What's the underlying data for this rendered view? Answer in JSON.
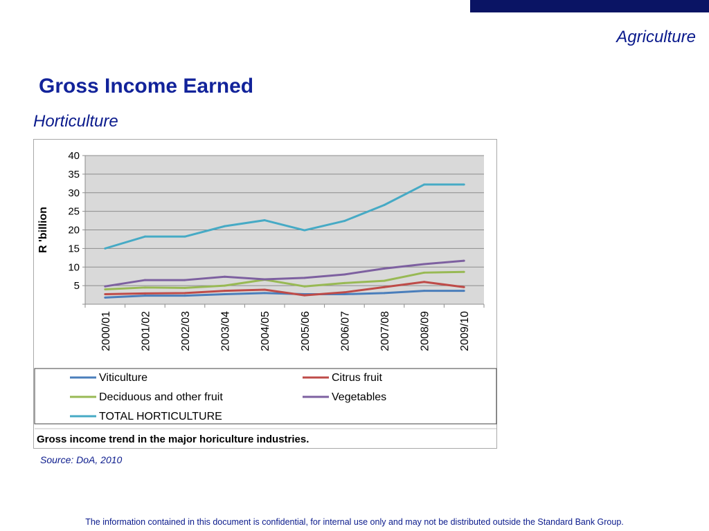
{
  "header": {
    "section_label": "Agriculture",
    "title": "Gross Income Earned",
    "subtitle": "Horticulture"
  },
  "source": "Source: DoA, 2010",
  "footer": "The information contained in this document is confidential, for internal use only and may not be distributed outside the Standard Bank Group.",
  "colors": {
    "brand_bar": "#0a1464",
    "heading": "#12239a",
    "plot_bg": "#d9d9d9"
  },
  "chart_data": {
    "type": "line",
    "title": "",
    "ylabel": "R 'billion",
    "xlabel": "",
    "ylim": [
      0,
      40
    ],
    "yticks": [
      5,
      10,
      15,
      20,
      25,
      30,
      35,
      40
    ],
    "grid": true,
    "legend_position": "bottom",
    "caption": "Gross income trend in the major horiculture industries.",
    "categories": [
      "2000/01",
      "2001/02",
      "2002/03",
      "2003/04",
      "2004/05",
      "2005/06",
      "2006/07",
      "2007/08",
      "2008/09",
      "2009/10"
    ],
    "series": [
      {
        "name": "Viticulture",
        "color": "#4a7ebb",
        "values": [
          1.8,
          2.3,
          2.3,
          2.7,
          3.0,
          2.7,
          2.7,
          3.0,
          3.6,
          3.6
        ]
      },
      {
        "name": "Citrus fruit",
        "color": "#be4b48",
        "values": [
          2.7,
          2.9,
          3.0,
          3.6,
          3.9,
          2.4,
          3.2,
          4.6,
          6.0,
          4.6
        ]
      },
      {
        "name": "Deciduous and other fruit",
        "color": "#98b954",
        "values": [
          4.0,
          4.5,
          4.4,
          5.0,
          6.6,
          4.8,
          5.7,
          6.3,
          8.5,
          8.7
        ]
      },
      {
        "name": "Vegetables",
        "color": "#7d60a0",
        "values": [
          4.8,
          6.5,
          6.5,
          7.4,
          6.7,
          7.1,
          8.0,
          9.6,
          10.8,
          11.7
        ]
      },
      {
        "name": "TOTAL HORTICULTURE",
        "color": "#46aac5",
        "values": [
          15.0,
          18.2,
          18.2,
          21.0,
          22.6,
          19.9,
          22.4,
          26.7,
          32.2,
          32.2
        ]
      }
    ]
  }
}
